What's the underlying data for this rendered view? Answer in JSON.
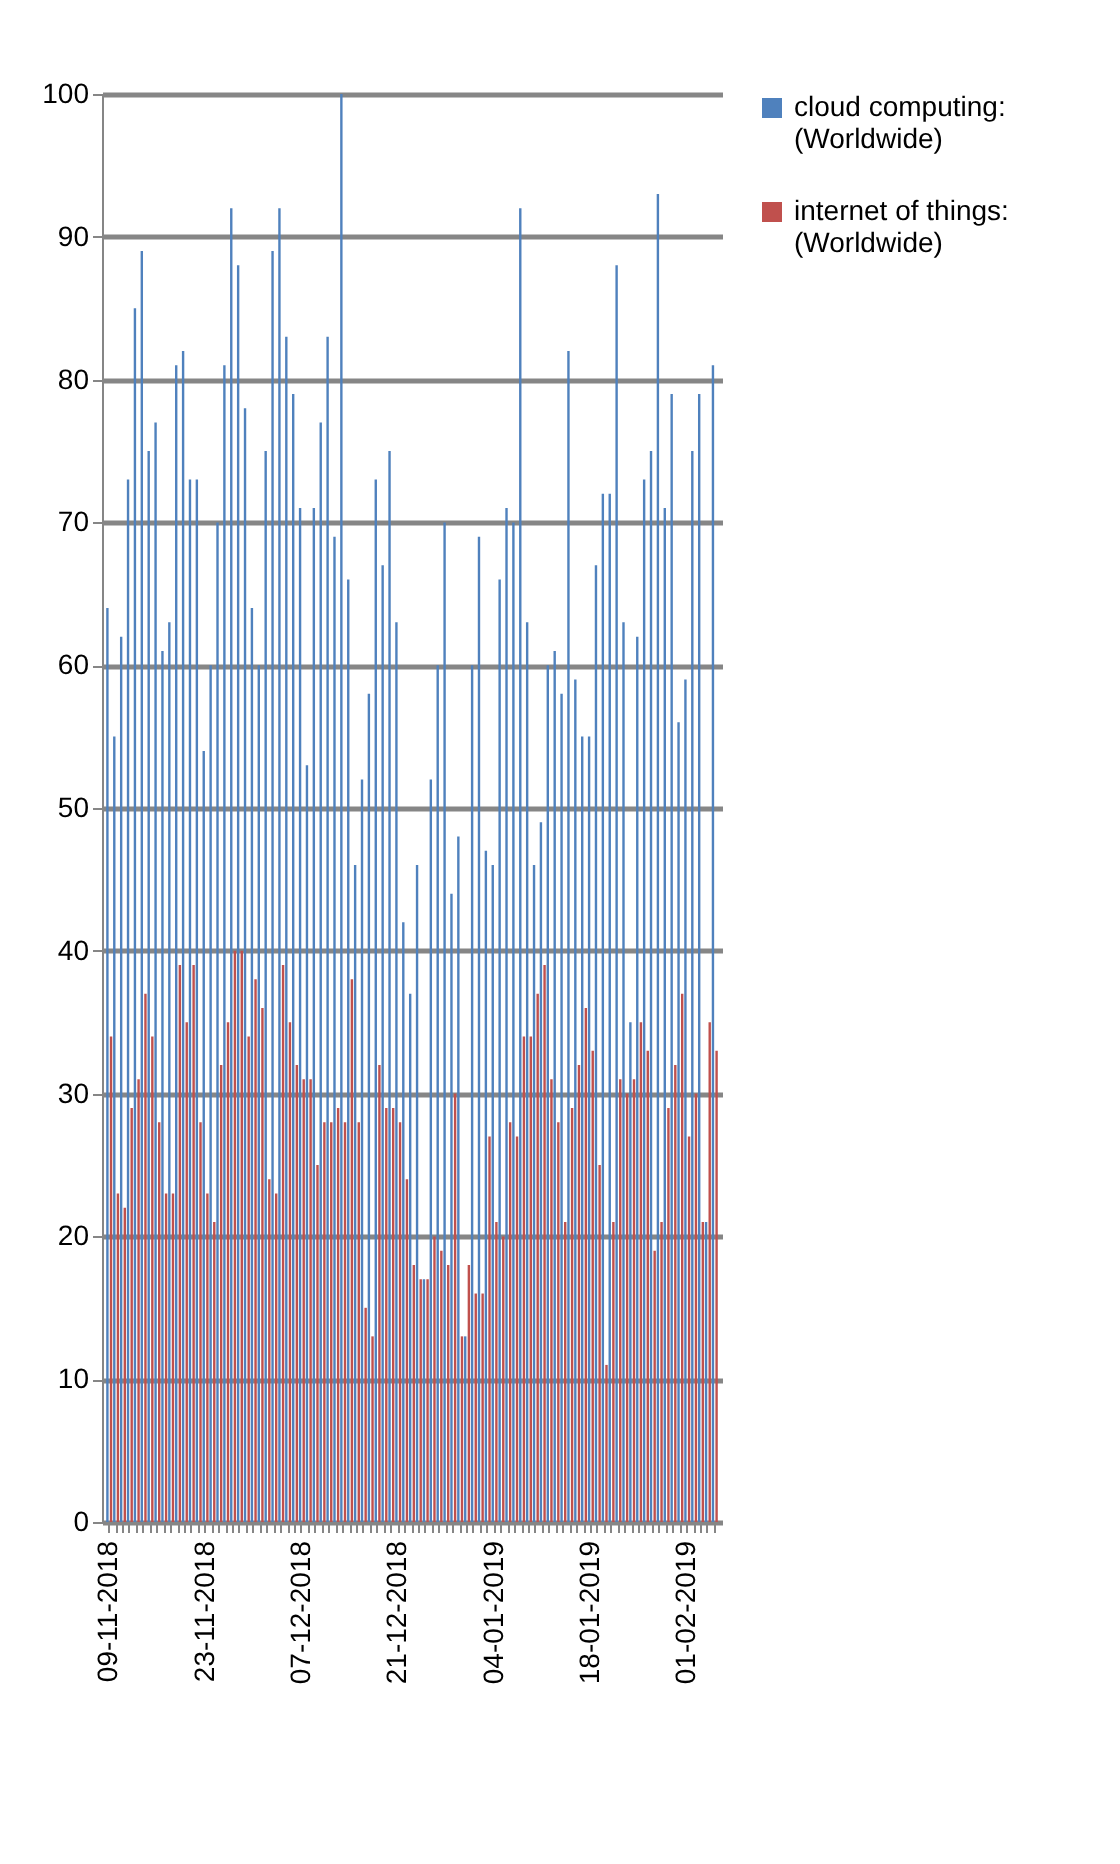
{
  "chart_data": {
    "type": "bar",
    "categories": [
      "09-11-2018",
      null,
      null,
      null,
      null,
      null,
      null,
      null,
      null,
      null,
      null,
      null,
      null,
      null,
      "23-11-2018",
      null,
      null,
      null,
      null,
      null,
      null,
      null,
      null,
      null,
      null,
      null,
      null,
      null,
      "07-12-2018",
      null,
      null,
      null,
      null,
      null,
      null,
      null,
      null,
      null,
      null,
      null,
      null,
      null,
      "21-12-2018",
      null,
      null,
      null,
      null,
      null,
      null,
      null,
      null,
      null,
      null,
      null,
      null,
      null,
      "04-01-2019",
      null,
      null,
      null,
      null,
      null,
      null,
      null,
      null,
      null,
      null,
      null,
      null,
      null,
      "18-01-2019",
      null,
      null,
      null,
      null,
      null,
      null,
      null,
      null,
      null,
      null,
      null,
      null,
      null,
      "01-02-2019",
      null,
      null,
      null,
      null
    ],
    "series": [
      {
        "name": "cloud computing: (Worldwide)",
        "color": "#4f81bd",
        "values": [
          64,
          55,
          62,
          73,
          85,
          89,
          75,
          77,
          61,
          63,
          81,
          82,
          73,
          73,
          54,
          60,
          70,
          81,
          92,
          88,
          78,
          64,
          60,
          75,
          89,
          92,
          83,
          79,
          71,
          53,
          71,
          77,
          83,
          69,
          100,
          66,
          46,
          52,
          58,
          73,
          67,
          75,
          63,
          42,
          37,
          46,
          17,
          52,
          60,
          70,
          44,
          48,
          13,
          60,
          69,
          47,
          46,
          66,
          71,
          70,
          92,
          63,
          46,
          49,
          60,
          61,
          58,
          82,
          59,
          55,
          55,
          67,
          72,
          72,
          88,
          63,
          35,
          62,
          73,
          75,
          93,
          71,
          79,
          56,
          59,
          75,
          79,
          21,
          81
        ]
      },
      {
        "name": "internet of things: (Worldwide)",
        "color": "#c0504d",
        "values": [
          34,
          23,
          22,
          29,
          31,
          37,
          34,
          28,
          23,
          23,
          39,
          35,
          39,
          28,
          23,
          21,
          32,
          35,
          40,
          40,
          34,
          38,
          36,
          24,
          23,
          39,
          35,
          32,
          31,
          31,
          25,
          28,
          28,
          29,
          28,
          38,
          28,
          15,
          13,
          32,
          29,
          29,
          28,
          24,
          18,
          17,
          17,
          20,
          19,
          18,
          30,
          13,
          18,
          16,
          16,
          27,
          21,
          20,
          28,
          27,
          34,
          34,
          37,
          39,
          31,
          28,
          21,
          29,
          32,
          36,
          33,
          25,
          11,
          21,
          31,
          30,
          31,
          35,
          33,
          19,
          21,
          29,
          32,
          37,
          27,
          30,
          21,
          35,
          33
        ]
      }
    ],
    "ylim": [
      0,
      100
    ],
    "yticks": [
      0,
      10,
      20,
      30,
      40,
      50,
      60,
      70,
      80,
      90,
      100
    ],
    "grid": "y",
    "legend": "right"
  }
}
